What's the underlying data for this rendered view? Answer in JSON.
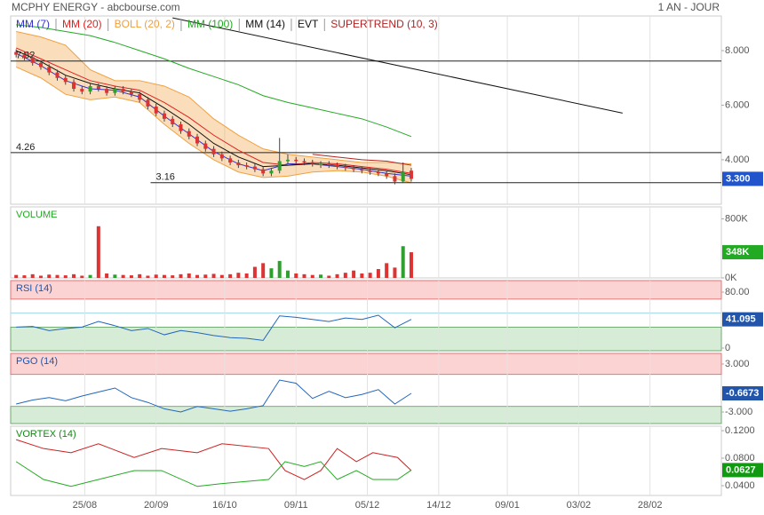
{
  "header": {
    "title": "MCPHY ENERGY - abcbourse.com",
    "period": "1 AN - JOUR"
  },
  "chart_data": [
    {
      "type": "candlestick",
      "x": [
        1,
        4,
        7,
        10,
        13,
        16,
        19,
        22,
        25,
        28,
        31,
        34,
        37,
        40,
        43,
        46,
        49,
        52,
        55,
        58,
        61,
        64,
        67,
        70,
        73,
        76,
        79,
        82,
        85,
        88,
        91,
        94,
        97,
        100,
        103,
        106,
        109,
        112,
        115,
        118,
        121,
        124,
        127,
        130,
        133,
        136,
        139,
        142,
        145
      ],
      "open": [
        7.95,
        7.85,
        7.75,
        7.55,
        7.4,
        7.2,
        7.0,
        6.85,
        6.6,
        6.5,
        6.7,
        6.6,
        6.45,
        6.6,
        6.5,
        6.4,
        6.2,
        5.95,
        5.7,
        5.5,
        5.3,
        5.05,
        4.85,
        4.6,
        4.4,
        4.2,
        4.05,
        3.9,
        3.8,
        3.75,
        3.65,
        3.5,
        3.6,
        3.95,
        4.0,
        3.95,
        3.9,
        3.8,
        3.85,
        3.8,
        3.75,
        3.7,
        3.65,
        3.6,
        3.55,
        3.5,
        3.4,
        3.2,
        3.6
      ],
      "high": [
        8.05,
        7.95,
        7.85,
        7.65,
        7.5,
        7.3,
        7.1,
        6.95,
        6.7,
        6.8,
        6.8,
        6.7,
        6.7,
        6.7,
        6.6,
        6.5,
        6.3,
        6.05,
        5.8,
        5.6,
        5.4,
        5.15,
        4.95,
        4.7,
        4.5,
        4.3,
        4.15,
        4.0,
        3.9,
        3.85,
        3.75,
        3.7,
        4.8,
        4.2,
        4.1,
        4.05,
        4.0,
        3.95,
        3.95,
        3.9,
        3.85,
        3.8,
        3.75,
        3.7,
        3.65,
        3.6,
        3.5,
        3.9,
        3.7
      ],
      "low": [
        7.75,
        7.65,
        7.45,
        7.3,
        7.1,
        6.9,
        6.75,
        6.5,
        6.4,
        6.4,
        6.5,
        6.35,
        6.35,
        6.4,
        6.3,
        6.1,
        5.85,
        5.6,
        5.4,
        5.2,
        4.95,
        4.75,
        4.5,
        4.3,
        4.1,
        3.95,
        3.8,
        3.7,
        3.65,
        3.55,
        3.4,
        3.4,
        3.5,
        3.85,
        3.85,
        3.8,
        3.75,
        3.7,
        3.7,
        3.65,
        3.6,
        3.55,
        3.5,
        3.45,
        3.4,
        3.3,
        3.1,
        3.15,
        3.2
      ],
      "close": [
        7.85,
        7.75,
        7.55,
        7.4,
        7.2,
        7.0,
        6.85,
        6.6,
        6.5,
        6.7,
        6.6,
        6.45,
        6.6,
        6.5,
        6.4,
        6.2,
        5.95,
        5.7,
        5.5,
        5.3,
        5.05,
        4.85,
        4.6,
        4.4,
        4.2,
        4.05,
        3.9,
        3.8,
        3.75,
        3.65,
        3.5,
        3.6,
        3.95,
        4.0,
        3.95,
        3.9,
        3.85,
        3.85,
        3.8,
        3.75,
        3.7,
        3.65,
        3.6,
        3.55,
        3.5,
        3.4,
        3.2,
        3.55,
        3.3
      ],
      "up_color": "#2fa02f",
      "down_color": "#dd3333",
      "series": [
        {
          "name": "MM (7)",
          "color": "#3333cc",
          "x": [
            1,
            10,
            19,
            28,
            37,
            46,
            55,
            64,
            73,
            82,
            91,
            100,
            109,
            118,
            127,
            136,
            145
          ],
          "values": [
            7.9,
            7.45,
            6.9,
            6.6,
            6.55,
            6.3,
            5.6,
            4.95,
            4.3,
            3.85,
            3.6,
            3.85,
            3.85,
            3.75,
            3.65,
            3.5,
            3.4
          ]
        },
        {
          "name": "MM (20)",
          "color": "#dd2222",
          "x": [
            1,
            10,
            19,
            28,
            37,
            46,
            55,
            64,
            73,
            82,
            91,
            100,
            109,
            118,
            127,
            136,
            145
          ],
          "values": [
            8.1,
            7.7,
            7.3,
            6.9,
            6.7,
            6.55,
            6.1,
            5.55,
            4.9,
            4.35,
            3.9,
            3.8,
            3.9,
            3.85,
            3.75,
            3.65,
            3.5
          ]
        },
        {
          "name": "BOLL (20, 2)",
          "color": "#f0a040",
          "x": [
            1,
            10,
            19,
            28,
            37,
            46,
            55,
            64,
            73,
            82,
            91,
            100,
            109,
            118,
            127,
            136,
            145
          ],
          "upper": [
            8.7,
            8.5,
            8.2,
            7.3,
            6.9,
            6.9,
            6.7,
            6.3,
            5.5,
            4.9,
            4.4,
            4.2,
            4.1,
            4.0,
            3.9,
            3.9,
            3.85
          ],
          "lower": [
            7.4,
            7.0,
            6.4,
            6.2,
            6.3,
            6.1,
            5.3,
            4.6,
            4.0,
            3.55,
            3.35,
            3.4,
            3.55,
            3.6,
            3.55,
            3.4,
            3.15
          ]
        },
        {
          "name": "MM (100)",
          "color": "#22aa22",
          "x": [
            1,
            10,
            19,
            28,
            37,
            46,
            55,
            64,
            73,
            82,
            91,
            100,
            109,
            118,
            127,
            136,
            145
          ],
          "values": [
            8.95,
            8.85,
            8.7,
            8.55,
            8.3,
            8.0,
            7.7,
            7.35,
            7.05,
            6.75,
            6.35,
            6.1,
            5.9,
            5.7,
            5.5,
            5.2,
            4.85
          ]
        },
        {
          "name": "MM (14)",
          "color": "#111111",
          "x": [
            1,
            10,
            19,
            28,
            37,
            46,
            55,
            64,
            73,
            82,
            91,
            100,
            109,
            118,
            127,
            136,
            145
          ],
          "values": [
            8.0,
            7.6,
            7.1,
            6.8,
            6.6,
            6.45,
            5.9,
            5.3,
            4.6,
            4.1,
            3.75,
            3.8,
            3.85,
            3.8,
            3.7,
            3.6,
            3.45
          ]
        },
        {
          "name": "EVT",
          "color": "#111111",
          "x": [
            58,
            222
          ],
          "values": [
            9.2,
            5.71
          ]
        },
        {
          "name": "SUPERTREND (10, 3)",
          "color": "#b22222",
          "x": [
            109,
            118,
            127,
            136,
            145
          ],
          "values": [
            4.2,
            4.1,
            4.0,
            3.95,
            3.8
          ]
        }
      ],
      "levels": [
        {
          "value": 7.62,
          "from": -1
        },
        {
          "value": 4.26,
          "from": -1
        },
        {
          "value": 3.16,
          "from": 50
        }
      ],
      "last": {
        "value": 3.3,
        "label": "3.300"
      },
      "last_color": "#2255cc",
      "ylim": [
        2.37,
        9.27
      ],
      "yticks": [
        {
          "value": 8,
          "label": "8.000"
        },
        {
          "value": 6,
          "label": "6.000"
        },
        {
          "value": 4,
          "label": "4.000"
        }
      ]
    },
    {
      "type": "bar",
      "title": "VOLUME",
      "title_color": "#22aa22",
      "values": [
        40000,
        35000,
        50000,
        30000,
        45000,
        40000,
        35000,
        50000,
        30000,
        40000,
        700000,
        60000,
        45000,
        40000,
        35000,
        50000,
        30000,
        45000,
        40000,
        35000,
        50000,
        60000,
        40000,
        45000,
        55000,
        40000,
        50000,
        70000,
        60000,
        150000,
        200000,
        130000,
        230000,
        100000,
        60000,
        50000,
        40000,
        45000,
        30000,
        50000,
        70000,
        100000,
        60000,
        70000,
        120000,
        200000,
        140000,
        430000,
        348000
      ],
      "last": {
        "value": 348000,
        "label": "348K"
      },
      "last_color": "#22aa22",
      "ylim": [
        0,
        962000
      ],
      "yticks": [
        {
          "value": 800000,
          "label": "800K"
        },
        {
          "value": 0,
          "label": "0K"
        }
      ]
    },
    {
      "type": "line",
      "title": "RSI (14)",
      "title_color": "#2255aa",
      "color": "#2266bb",
      "x": [
        1,
        7,
        13,
        19,
        25,
        31,
        37,
        43,
        49,
        55,
        61,
        67,
        73,
        79,
        85,
        91,
        97,
        103,
        109,
        115,
        121,
        127,
        133,
        139,
        145
      ],
      "values": [
        30,
        31,
        25,
        28,
        30,
        38,
        32,
        25,
        28,
        19,
        25,
        22,
        18,
        15,
        14,
        11,
        46,
        44,
        41,
        38,
        43,
        41,
        47,
        29,
        41.095
      ],
      "bands": {
        "upper": 70,
        "lower": 30
      },
      "midline": 50,
      "last_color": "#2255aa",
      "ylim": [
        -3.8,
        96.5
      ],
      "yticks": [
        {
          "value": 80,
          "label": "80.00"
        },
        0
      ]
    },
    {
      "type": "line",
      "title": "PGO (14)",
      "title_color": "#2255aa",
      "color": "#2266bb",
      "x": [
        1,
        7,
        13,
        19,
        25,
        31,
        37,
        43,
        49,
        55,
        61,
        67,
        73,
        79,
        85,
        91,
        97,
        103,
        109,
        115,
        121,
        127,
        133,
        139,
        145
      ],
      "values": [
        -2.0,
        -1.5,
        -1.2,
        -1.6,
        -1.0,
        -0.5,
        0.0,
        -1.2,
        -1.8,
        -2.6,
        -3.0,
        -2.3,
        -2.6,
        -2.9,
        -2.6,
        -2.2,
        1.0,
        0.6,
        -1.3,
        -0.4,
        -1.2,
        -0.8,
        -0.2,
        -2.0,
        -0.6673
      ],
      "bands": {
        "upper": 1.7,
        "lower": -2.3
      },
      "last_color": "#2255aa",
      "ylim": [
        -4.44,
        4.33
      ],
      "yticks": [
        {
          "value": 3,
          "label": "3.000"
        },
        {
          "value": -3,
          "label": "-3.000"
        }
      ]
    },
    {
      "type": "line",
      "title": "VORTEX (14)",
      "title_color": "#118811",
      "series": [
        {
          "color": "#cc2222",
          "x": [
            1,
            11,
            21,
            31,
            44,
            54,
            67,
            76,
            93,
            99,
            106,
            112,
            118,
            125,
            131,
            140,
            145
          ],
          "values": [
            0.107,
            0.094,
            0.088,
            0.101,
            0.081,
            0.094,
            0.088,
            0.101,
            0.094,
            0.062,
            0.049,
            0.062,
            0.094,
            0.075,
            0.088,
            0.081,
            0.062
          ]
        },
        {
          "color": "#22aa22",
          "x": [
            1,
            11,
            21,
            31,
            44,
            54,
            67,
            76,
            93,
            99,
            106,
            112,
            118,
            125,
            131,
            140,
            145
          ],
          "values": [
            0.075,
            0.049,
            0.039,
            0.049,
            0.062,
            0.062,
            0.039,
            0.043,
            0.049,
            0.075,
            0.068,
            0.075,
            0.049,
            0.062,
            0.049,
            0.049,
            0.0627
          ]
        }
      ],
      "last_color": "#119911",
      "ylim": [
        0.0258,
        0.1265
      ],
      "yticks": [
        {
          "value": 0.12,
          "label": "0.1200"
        },
        {
          "value": 0.08,
          "label": "0.0800"
        },
        {
          "value": 0.04,
          "label": "0.0400"
        }
      ],
      "xlim": [
        -1,
        258
      ],
      "xticks": [
        {
          "value": 26,
          "label": "25/08"
        },
        {
          "value": 52,
          "label": "20/09"
        },
        {
          "value": 77,
          "label": "16/10"
        },
        {
          "value": 103,
          "label": "09/11"
        },
        {
          "value": 129,
          "label": "05/12"
        },
        {
          "value": 155,
          "label": "14/12"
        },
        {
          "value": 180,
          "label": "09/01"
        },
        {
          "value": 206,
          "label": "03/02"
        },
        {
          "value": 232,
          "label": "28/02"
        }
      ]
    }
  ]
}
